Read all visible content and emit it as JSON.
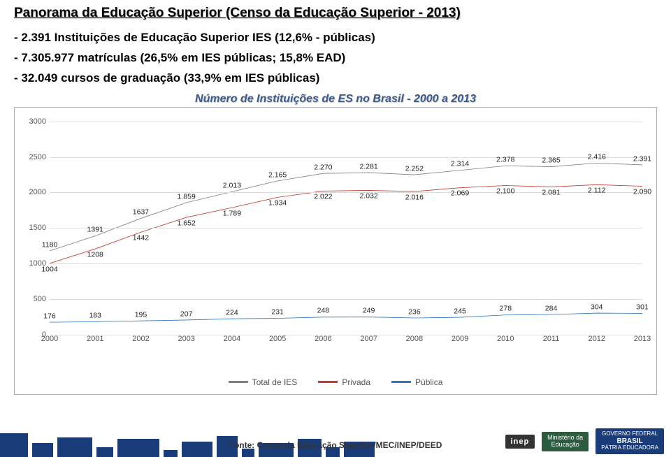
{
  "title": "Panorama da Educação Superior (Censo da Educação Superior - 2013)",
  "bullets": [
    "- 2.391 Instituições de Educação Superior IES (12,6% - públicas)",
    "- 7.305.977 matrículas (26,5% em IES públicas; 15,8% EAD)",
    "- 32.049 cursos de graduação (33,9% em IES públicas)"
  ],
  "chart": {
    "title": "Número de Instituições de ES no Brasil - 2000 a 2013",
    "type": "line",
    "years": [
      "2000",
      "2001",
      "2002",
      "2003",
      "2004",
      "2005",
      "2006",
      "2007",
      "2008",
      "2009",
      "2010",
      "2011",
      "2012",
      "2013"
    ],
    "series": [
      {
        "name": "Total de IES",
        "color": "#7f7f7f",
        "values": [
          1180,
          1391,
          1637,
          1859,
          2013,
          2165,
          2270,
          2281,
          2252,
          2314,
          2378,
          2365,
          2416,
          2391
        ],
        "labels": [
          "1180",
          "1391",
          "1637",
          "1.859",
          "2.013",
          "2.165",
          "2.270",
          "2.281",
          "2.252",
          "2.314",
          "2.378",
          "2.365",
          "2.416",
          "2.391"
        ],
        "label_pos": "above"
      },
      {
        "name": "Privada",
        "color": "#c0392b",
        "values": [
          1004,
          1208,
          1442,
          1652,
          1789,
          1934,
          2022,
          2032,
          2016,
          2069,
          2100,
          2081,
          2112,
          2090
        ],
        "labels": [
          "1004",
          "1208",
          "1442",
          "1.652",
          "1.789",
          "1.934",
          "2.022",
          "2.032",
          "2.016",
          "2.069",
          "2.100",
          "2.081",
          "2.112",
          "2.090"
        ],
        "label_pos": "below"
      },
      {
        "name": "Pública",
        "color": "#2e75b6",
        "values": [
          176,
          183,
          195,
          207,
          224,
          231,
          248,
          249,
          236,
          245,
          278,
          284,
          304,
          301
        ],
        "labels": [
          "176",
          "183",
          "195",
          "207",
          "224",
          "231",
          "248",
          "249",
          "236",
          "245",
          "278",
          "284",
          "304",
          "301"
        ],
        "label_pos": "above"
      }
    ],
    "ylim": [
      0,
      3000
    ],
    "ytick_step": 500,
    "yticks": [
      "0",
      "500",
      "1000",
      "1500",
      "2000",
      "2500",
      "3000"
    ],
    "grid_color": "#dddddd",
    "line_width": 2.5,
    "label_fontsize": 10.5,
    "axis_fontsize": 11
  },
  "source": "Fonte: Censo da Educação Superior/MEC/INEP/DEED",
  "logos": {
    "inep": "inep",
    "mec": "Ministério da\nEducação",
    "gov": "GOVERNO FEDERAL\nBRASIL\nPÁTRIA EDUCADORA"
  },
  "footer_block_color": "#1a3d7a"
}
